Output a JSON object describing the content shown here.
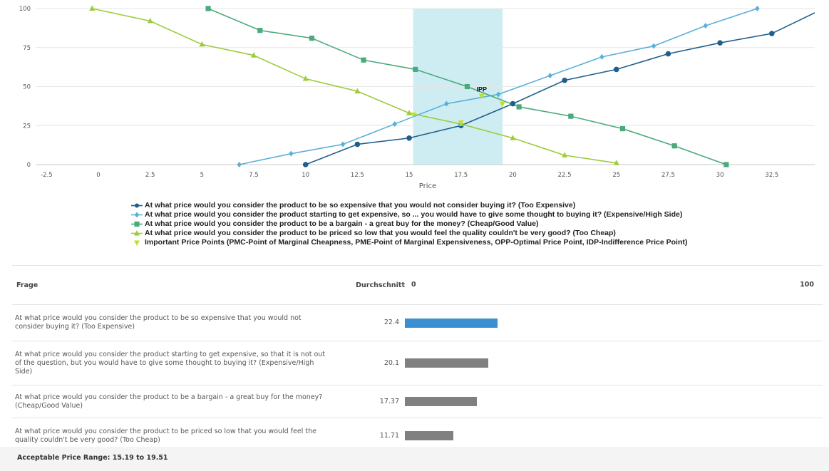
{
  "chart_data": {
    "type": "line",
    "xlabel": "Price",
    "xlim": [
      -3,
      35
    ],
    "ylim": [
      0,
      100
    ],
    "x_ticks": [
      -2.5,
      0,
      2.5,
      5,
      7.5,
      10,
      12.5,
      15,
      17.5,
      20,
      22.5,
      25,
      27.5,
      30,
      32.5
    ],
    "y_ticks": [
      0,
      25,
      50,
      75,
      100
    ],
    "acceptable_range": [
      15.19,
      19.51
    ],
    "annotation": {
      "label": "IPP",
      "x": 18.5,
      "y": 44
    },
    "series": [
      {
        "name": "At what price would you consider the product to be so expensive that you would not consider buying it? (Too Expensive)",
        "color": "#1f5f8b",
        "marker": "circle",
        "x": [
          10,
          12.5,
          15,
          17.5,
          20,
          22.5,
          25,
          27.5,
          30,
          32.5,
          35
        ],
        "y": [
          0,
          13,
          17,
          25,
          39,
          54,
          61,
          71,
          78,
          84,
          100
        ]
      },
      {
        "name": "At what price would you consider the product starting to get expensive, so ... you would have to give some thought to buying it? (Expensive/High Side)",
        "color": "#5aafd6",
        "marker": "diamond",
        "x": [
          6.8,
          9.3,
          11.8,
          14.3,
          16.8,
          19.3,
          21.8,
          24.3,
          26.8,
          29.3,
          31.8
        ],
        "y": [
          0,
          7,
          13,
          26,
          39,
          45,
          57,
          69,
          76,
          89,
          100
        ]
      },
      {
        "name": "At what price would you consider the product to be a bargain - a great buy for the money? (Cheap/Good Value)",
        "color": "#4aaa7c",
        "marker": "square",
        "x": [
          5.3,
          7.8,
          10.3,
          12.8,
          15.3,
          17.8,
          20.3,
          22.8,
          25.3,
          27.8,
          30.3
        ],
        "y": [
          100,
          86,
          81,
          67,
          61,
          50,
          37,
          31,
          23,
          12,
          0
        ]
      },
      {
        "name": "At what price would you consider the product to be priced so low that you would feel the quality couldn't be very good? (Too Cheap)",
        "color": "#9ccc3b",
        "marker": "triangle",
        "x": [
          -0.3,
          2.5,
          5,
          7.5,
          10,
          12.5,
          15,
          17.5,
          20,
          22.5,
          25
        ],
        "y": [
          100,
          92,
          77,
          70,
          55,
          47,
          33,
          26,
          17,
          6,
          1
        ]
      },
      {
        "name": "Important Price Points (PMC-Point of Marginal Cheapness, PME-Point of Marginal Expensiveness, OPP-Optimal Price Point, IDP-Indifference Price Point)",
        "color": "#c4dd2a",
        "marker": "triangle-down",
        "x": [
          15.2,
          17.5,
          18.5,
          19.5
        ],
        "y": [
          32,
          27,
          44,
          39
        ]
      }
    ]
  },
  "table": {
    "col_question": "Frage",
    "col_avg": "Durchschnitt",
    "scale_min": "0",
    "scale_max": "100",
    "scale_min_value": 0,
    "scale_max_value": 100,
    "rows": [
      {
        "question": "At what price would you consider the product to be so expensive that you would not consider buying it? (Too Expensive)",
        "avg": "22.4",
        "value": 22.4,
        "color": "#3a8fd0"
      },
      {
        "question": "At what price would you consider the product starting to get expensive, so that it is not out of the question, but you would have to give some thought to buying it? (Expensive/High Side)",
        "avg": "20.1",
        "value": 20.1,
        "color": "#808080"
      },
      {
        "question": "At what price would you consider the product to be a bargain - a great buy for the money? (Cheap/Good Value)",
        "avg": "17.37",
        "value": 17.37,
        "color": "#808080"
      },
      {
        "question": "At what price would you consider the product to be priced so low that you would feel the quality couldn't be very good? (Too Cheap)",
        "avg": "11.71",
        "value": 11.71,
        "color": "#808080"
      }
    ]
  },
  "footer": {
    "text": "Acceptable Price Range: 15.19 to 19.51"
  }
}
